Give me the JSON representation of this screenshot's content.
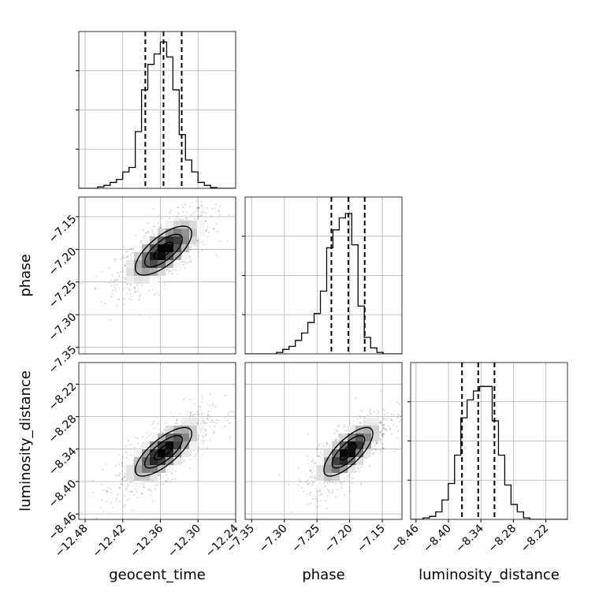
{
  "chart_data": {
    "type": "corner",
    "parameters": [
      "geocent_time",
      "phase",
      "luminosity_distance"
    ],
    "axis_labels": [
      "geocent_time",
      "phase",
      "luminosity_distance"
    ],
    "ranges": [
      [
        -12.49,
        -12.24
      ],
      [
        -7.36,
        -7.12
      ],
      [
        -8.47,
        -8.18
      ]
    ],
    "ticks": [
      [
        -12.48,
        -12.42,
        -12.36,
        -12.3,
        -12.24
      ],
      [
        -7.35,
        -7.3,
        -7.25,
        -7.2,
        -7.15
      ],
      [
        -8.46,
        -8.4,
        -8.34,
        -8.28,
        -8.22
      ]
    ],
    "tick_labels": [
      [
        "−12.48",
        "−12.42",
        "−12.36",
        "−12.30",
        "−12.24"
      ],
      [
        "−7.35",
        "−7.30",
        "−7.25",
        "−7.20",
        "−7.15"
      ],
      [
        "−8.46",
        "−8.40",
        "−8.34",
        "−8.28",
        "−8.22"
      ]
    ],
    "quantiles": [
      [
        -12.384,
        -12.355,
        -12.326
      ],
      [
        -7.228,
        -7.202,
        -7.177
      ],
      [
        -8.375,
        -8.345,
        -8.315
      ]
    ],
    "histograms": [
      [
        0,
        0,
        0,
        0.01,
        0.02,
        0.04,
        0.06,
        0.11,
        0.14,
        0.38,
        0.66,
        0.83,
        0.9,
        0.98,
        0.88,
        0.66,
        0.36,
        0.19,
        0.11,
        0.04,
        0.02,
        0.005,
        0,
        0,
        0
      ],
      [
        0,
        0,
        0,
        0,
        0,
        0.01,
        0.03,
        0.05,
        0.09,
        0.14,
        0.21,
        0.27,
        0.42,
        0.71,
        0.83,
        0.91,
        0.94,
        0.73,
        0.32,
        0.11,
        0.04,
        0.01,
        0,
        0,
        0
      ],
      [
        0,
        0,
        0.01,
        0.02,
        0.05,
        0.13,
        0.24,
        0.43,
        0.68,
        0.8,
        0.86,
        0.89,
        0.89,
        0.66,
        0.43,
        0.23,
        0.1,
        0.05,
        0.01,
        0,
        0,
        0,
        0,
        0,
        0
      ]
    ],
    "joint_stats": {
      "means": [
        -12.355,
        -7.202,
        -8.345
      ],
      "stds": [
        0.03,
        0.025,
        0.03
      ],
      "correlations": {
        "0-1": 0.7,
        "0-2": 0.75,
        "1-2": 0.75
      }
    },
    "contour_levels": [
      0.118,
      0.393,
      0.675,
      0.864
    ],
    "grid": true
  }
}
